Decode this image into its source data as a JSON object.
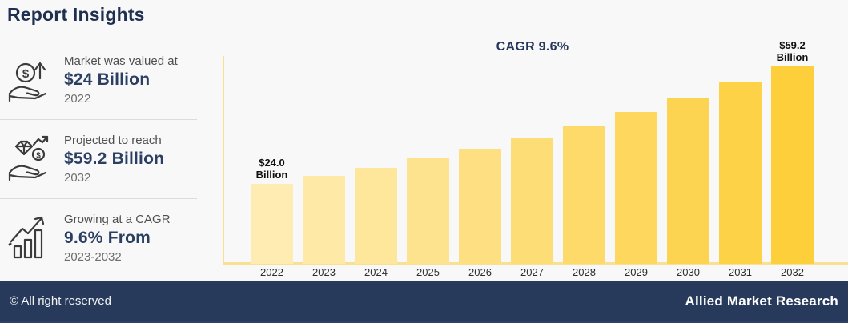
{
  "page": {
    "background": "#f8f8f8"
  },
  "header": {
    "title": "Report Insights",
    "color": "#1e2f4f"
  },
  "insights": [
    {
      "icon": "hand-coin-growth-icon",
      "line1": "Market was valued at",
      "value": "$24 Billion",
      "period": "2022"
    },
    {
      "icon": "hand-diamond-coin-icon",
      "line1": "Projected to reach",
      "value": "$59.2 Billion",
      "period": "2032"
    },
    {
      "icon": "growth-bar-chart-icon",
      "line1": "Growing at a CAGR",
      "value": "9.6% From",
      "period": "2023-2032"
    }
  ],
  "chart_data": {
    "type": "bar",
    "title": "CAGR 9.6%",
    "categories": [
      "2022",
      "2023",
      "2024",
      "2025",
      "2026",
      "2027",
      "2028",
      "2029",
      "2030",
      "2031",
      "2032"
    ],
    "values": [
      24.0,
      26.3,
      28.8,
      31.6,
      34.6,
      38.0,
      41.6,
      45.6,
      50.0,
      54.8,
      59.2
    ],
    "unit": "USD Billion",
    "ylim": [
      0,
      62
    ],
    "grid": false,
    "legend": "none",
    "axis_color": "#fae092",
    "bar_colors": [
      "#feecb2",
      "#fee9a6",
      "#fee69a",
      "#fee38e",
      "#fee082",
      "#fddd76",
      "#fdda6a",
      "#fdd75e",
      "#fdd452",
      "#fdd246",
      "#fdcf3a"
    ],
    "annotations": [
      {
        "index": 0,
        "lines": [
          "$24.0",
          "Billion"
        ]
      },
      {
        "index": 10,
        "lines": [
          "$59.2",
          "Billion"
        ]
      }
    ]
  },
  "footer": {
    "left": "© All right reserved",
    "right": "Allied Market Research",
    "background": "#273a5b"
  }
}
